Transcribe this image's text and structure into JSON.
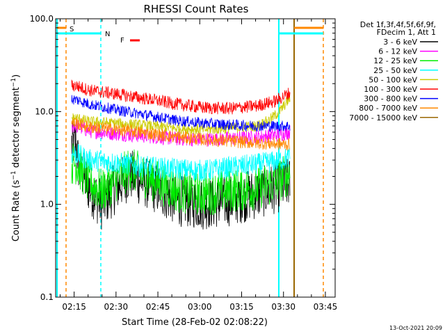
{
  "chart_data": {
    "type": "line",
    "title": "RHESSI Count Rates",
    "xlabel": "Start Time (28-Feb-02 02:08:22)",
    "ylabel": "Count Rate (s^-1 detector segment^-1)",
    "ylabel_base": "Count Rate (s",
    "ylabel_sup1": "−1",
    "ylabel_mid": " detector segment",
    "ylabel_sup2": "−1",
    "ylabel_end": ")",
    "y_scale": "log",
    "ylim": [
      0.1,
      100.0
    ],
    "xlim": [
      "02:08:22",
      "03:48:30"
    ],
    "x_ticks": [
      "02:15",
      "02:30",
      "02:45",
      "03:00",
      "03:15",
      "03:30",
      "03:45"
    ],
    "y_ticks": [
      "100.0",
      "10.0",
      "1.0",
      "0.1"
    ],
    "legend_header": [
      "Det 1f,3f,4f,5f,6f,9f,",
      "FDecim 1, Att 1"
    ],
    "series": [
      {
        "name": "3 - 6 keV",
        "color": "#000000",
        "values": [
          [
            2.5,
            4.5
          ],
          [
            4,
            2.6
          ],
          [
            10,
            1.5
          ],
          [
            17,
            1.0
          ],
          [
            25,
            1.5
          ],
          [
            33,
            2.1
          ],
          [
            45,
            1.6
          ],
          [
            60,
            1.1
          ],
          [
            75,
            1.0
          ],
          [
            90,
            1.1
          ],
          [
            105,
            1.3
          ],
          [
            116,
            1.5
          ],
          [
            124,
            1.7
          ]
        ]
      },
      {
        "name": "6 - 12 keV",
        "color": "#ff00ff",
        "values": [
          [
            2.5,
            7.0
          ],
          [
            10,
            6.2
          ],
          [
            25,
            5.8
          ],
          [
            45,
            5.4
          ],
          [
            60,
            5.1
          ],
          [
            75,
            5.0
          ],
          [
            90,
            5.1
          ],
          [
            105,
            5.3
          ],
          [
            116,
            5.6
          ],
          [
            124,
            6.0
          ]
        ]
      },
      {
        "name": "12 - 25 keV",
        "color": "#00ee00",
        "values": [
          [
            2.5,
            2.8
          ],
          [
            10,
            1.7
          ],
          [
            17,
            1.4
          ],
          [
            25,
            1.8
          ],
          [
            33,
            2.4
          ],
          [
            45,
            1.9
          ],
          [
            60,
            1.4
          ],
          [
            75,
            1.3
          ],
          [
            90,
            1.4
          ],
          [
            105,
            1.5
          ],
          [
            116,
            1.7
          ],
          [
            124,
            2.2
          ]
        ]
      },
      {
        "name": "25 - 50 keV",
        "color": "#00ffff",
        "values": [
          [
            2.5,
            3.5
          ],
          [
            10,
            3.0
          ],
          [
            25,
            2.8
          ],
          [
            45,
            2.5
          ],
          [
            60,
            2.4
          ],
          [
            75,
            2.3
          ],
          [
            90,
            2.5
          ],
          [
            105,
            2.7
          ],
          [
            116,
            2.9
          ],
          [
            124,
            3.2
          ]
        ]
      },
      {
        "name": "50 - 100 keV",
        "color": "#cccc00",
        "values": [
          [
            2.5,
            8.5
          ],
          [
            10,
            7.8
          ],
          [
            25,
            7.5
          ],
          [
            45,
            7.0
          ],
          [
            60,
            6.6
          ],
          [
            75,
            6.4
          ],
          [
            90,
            6.6
          ],
          [
            105,
            7.0
          ],
          [
            112,
            8.0
          ],
          [
            118,
            10.0
          ],
          [
            124,
            14.0
          ]
        ]
      },
      {
        "name": "100 - 300 keV",
        "color": "#ff0000",
        "values": [
          [
            2.5,
            19.0
          ],
          [
            10,
            17.0
          ],
          [
            25,
            15.5
          ],
          [
            45,
            13.5
          ],
          [
            60,
            12.0
          ],
          [
            75,
            11.0
          ],
          [
            90,
            10.8
          ],
          [
            105,
            11.5
          ],
          [
            116,
            13.0
          ],
          [
            124,
            16.0
          ]
        ]
      },
      {
        "name": "300 - 800 keV",
        "color": "#0000ff",
        "values": [
          [
            2.5,
            13.5
          ],
          [
            10,
            12.0
          ],
          [
            25,
            10.5
          ],
          [
            45,
            9.0
          ],
          [
            60,
            8.0
          ],
          [
            75,
            7.5
          ],
          [
            90,
            7.2
          ],
          [
            105,
            7.0
          ],
          [
            116,
            7.0
          ],
          [
            124,
            7.0
          ]
        ]
      },
      {
        "name": "800 - 7000 keV",
        "color": "#ff8800",
        "values": [
          [
            2.5,
            7.5
          ],
          [
            10,
            6.8
          ],
          [
            25,
            6.4
          ],
          [
            45,
            5.8
          ],
          [
            60,
            5.3
          ],
          [
            75,
            5.0
          ],
          [
            90,
            4.8
          ],
          [
            105,
            4.6
          ],
          [
            116,
            4.5
          ],
          [
            124,
            4.4
          ]
        ]
      },
      {
        "name": "7000 - 15000 keV",
        "color": "#996600",
        "values": []
      }
    ],
    "annotations": [
      {
        "label": "S",
        "color": "#ff8800"
      },
      {
        "label": "N",
        "color": "#00ffff"
      },
      {
        "label": "F",
        "color": "#ff0000"
      }
    ],
    "grid": false,
    "legend_placement": "right"
  },
  "footer": {
    "timestamp": "13-Oct-2021 20:09"
  }
}
